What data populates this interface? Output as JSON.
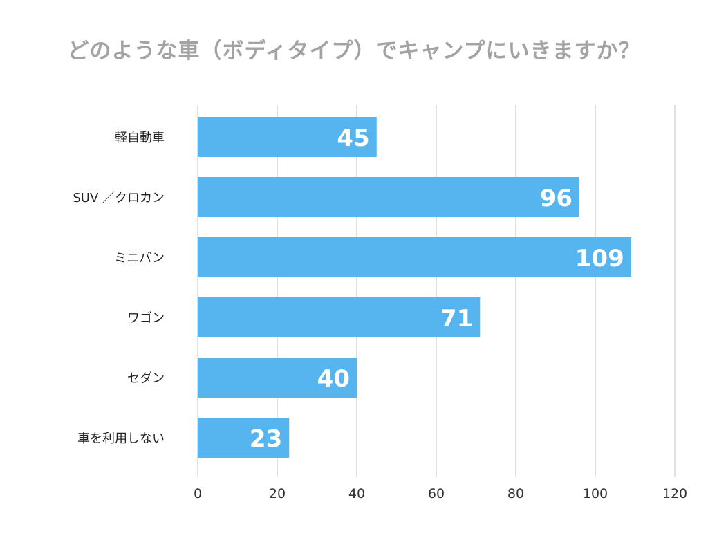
{
  "chart_data": {
    "type": "bar",
    "orientation": "horizontal",
    "title": "どのような車（ボディタイプ）でキャンプにいきますか？",
    "categories": [
      "軽自動車",
      "SUV ／クロカン",
      "ミニバン",
      "ワゴン",
      "セダン",
      "車を利用しない"
    ],
    "values": [
      45,
      96,
      109,
      71,
      40,
      23
    ],
    "xlim": [
      0,
      120
    ],
    "xticks": [
      "0",
      "20",
      "40",
      "60",
      "80",
      "100",
      "120"
    ],
    "xlabel": "",
    "ylabel": "",
    "grid": true,
    "bar_color": "#56b4ef",
    "label_color": "#ffffff"
  }
}
